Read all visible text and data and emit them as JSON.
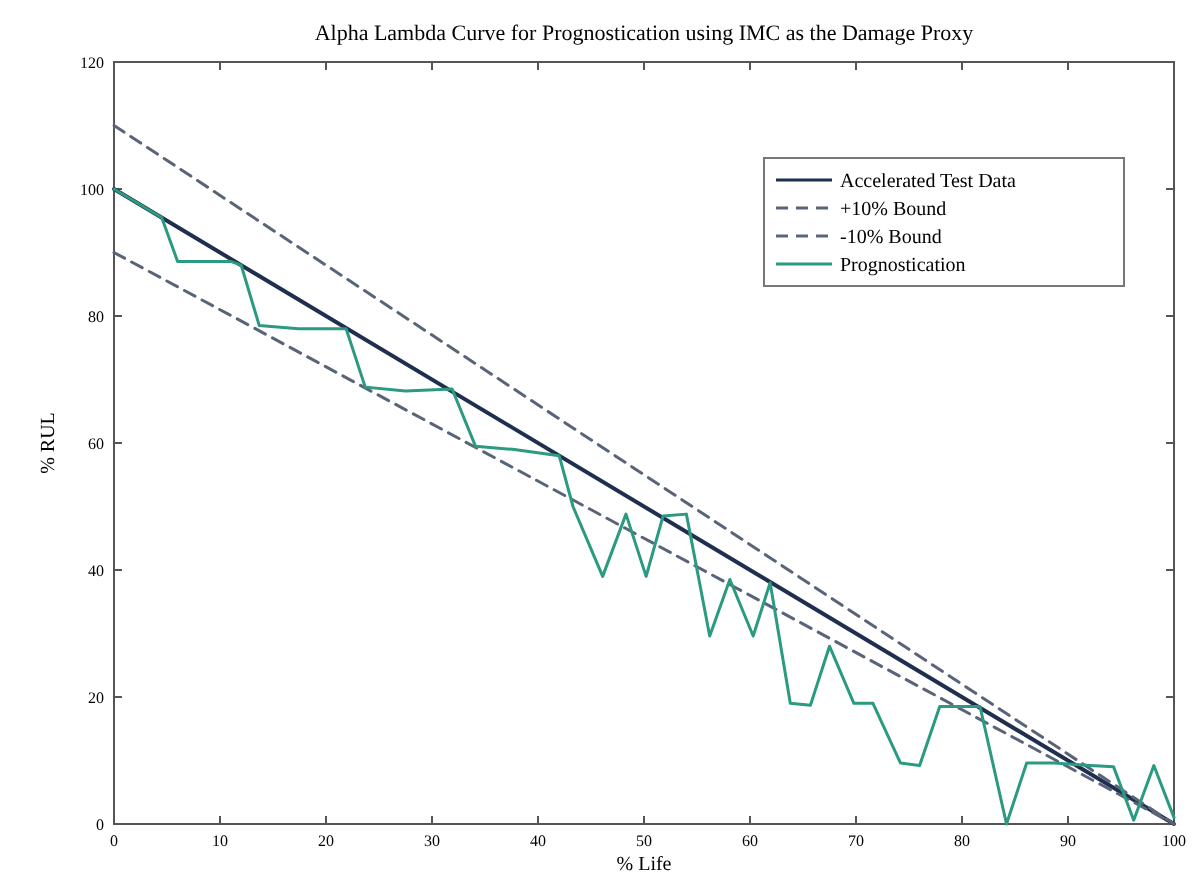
{
  "chart_data": {
    "type": "line",
    "title": "Alpha Lambda Curve for Prognostication using IMC as the Damage Proxy",
    "xlabel": "% Life",
    "ylabel": "% RUL",
    "xlim": [
      0,
      100
    ],
    "xticks": [
      0,
      10,
      20,
      30,
      40,
      50,
      60,
      70,
      80,
      90,
      100
    ],
    "ylim": [
      0,
      120
    ],
    "yticks": [
      0,
      20,
      40,
      60,
      80,
      100,
      120
    ],
    "grid": false,
    "legend": "top right",
    "marker": "none",
    "series": [
      {
        "name": "Accelerated Test Data",
        "color": "#1f2f4f",
        "x": [
          0,
          100
        ],
        "values": [
          100,
          0
        ],
        "line_style": "solid"
      },
      {
        "name": "+10% Bound",
        "color": "#5a6478",
        "x": [
          0,
          100
        ],
        "values": [
          110,
          0
        ],
        "line_style": "dashed"
      },
      {
        "name": "-10% Bound",
        "color": "#5a6478",
        "x": [
          0,
          100
        ],
        "values": [
          90,
          0
        ],
        "line_style": "dashed"
      },
      {
        "name": "Prognostication",
        "color": "#2a9a80",
        "line_style": "solid",
        "x": [
          0,
          4.5,
          6,
          11,
          12,
          13.7,
          17.4,
          21.9,
          23.7,
          27.5,
          31.9,
          34.1,
          37.6,
          42,
          43.3,
          46.1,
          48.3,
          50.2,
          51.8,
          54,
          56.2,
          58.1,
          60.3,
          61.9,
          63.8,
          65.7,
          67.5,
          69.8,
          71.6,
          74.2,
          76,
          77.9,
          80.1,
          81.7,
          84.2,
          86.1,
          88.7,
          92.1,
          94.3,
          96.2,
          98.1,
          100
        ],
        "values": [
          100,
          95.5,
          88.6,
          88.6,
          88,
          78.5,
          78,
          78,
          68.8,
          68.2,
          68.5,
          59.5,
          59,
          58,
          50,
          39,
          48.8,
          39,
          48.5,
          48.8,
          29.6,
          38.5,
          29.6,
          38,
          19,
          18.7,
          28,
          19,
          19,
          9.6,
          9.2,
          18.5,
          18.5,
          18.5,
          0,
          9.6,
          9.6,
          9.2,
          9,
          0.6,
          9.2,
          1
        ]
      }
    ]
  }
}
